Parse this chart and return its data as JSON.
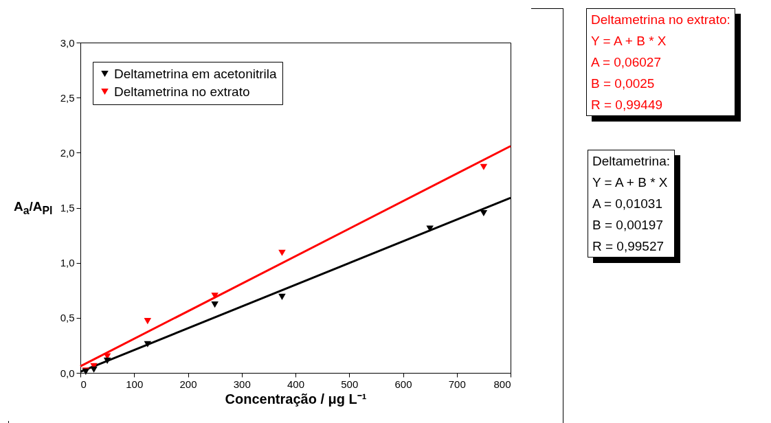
{
  "chart_data": {
    "type": "scatter",
    "xlabel": "Concentração / μg L⁻¹",
    "ylabel": "A$_{a}$/A$_{Pl}$",
    "xlim": [
      0,
      800
    ],
    "xticks": [
      0,
      100,
      200,
      300,
      400,
      500,
      600,
      700,
      800
    ],
    "ylim": [
      0,
      3
    ],
    "yticks": [
      {
        "value": 0,
        "label": "0,0"
      },
      {
        "value": 0.5,
        "label": "0,5"
      },
      {
        "value": 1,
        "label": "1,0"
      },
      {
        "value": 1.5,
        "label": "1,5"
      },
      {
        "value": 2,
        "label": "2,0"
      },
      {
        "value": 2.5,
        "label": "2,5"
      },
      {
        "value": 3,
        "label": "3,0"
      }
    ],
    "marker": "triangle",
    "legend": "top left",
    "grid": false,
    "series": [
      {
        "name": "Deltametrina em acetonitrila",
        "color": "#000000",
        "x": [
          10,
          25,
          50,
          125,
          250,
          375,
          650,
          750
        ],
        "values": [
          0.01,
          0.03,
          0.11,
          0.26,
          0.62,
          0.69,
          1.31,
          1.45
        ]
      },
      {
        "name": "Deltametrina no extrato",
        "color": "#ff0000",
        "x": [
          10,
          25,
          50,
          125,
          250,
          375,
          750
        ],
        "values": [
          0.02,
          0.06,
          0.15,
          0.47,
          0.7,
          1.09,
          1.87
        ]
      },
      {
        "type": "line",
        "marker": "none",
        "color": "#000000",
        "x": [
          0,
          800
        ],
        "values": [
          0.01,
          1.59
        ]
      },
      {
        "type": "line",
        "marker": "none",
        "color": "#ff0000",
        "x": [
          0,
          800
        ],
        "values": [
          0.06,
          2.06
        ]
      }
    ],
    "annotations": [
      "Deltametrina no extrato:\nY = A + B * X\nA = 0,06027\nB = 0,0025\nR = 0,99449",
      "Deltametrina:\nY = A + B * X\nA = 0,01031\nB = 0,00197\nR = 0,99527"
    ]
  }
}
